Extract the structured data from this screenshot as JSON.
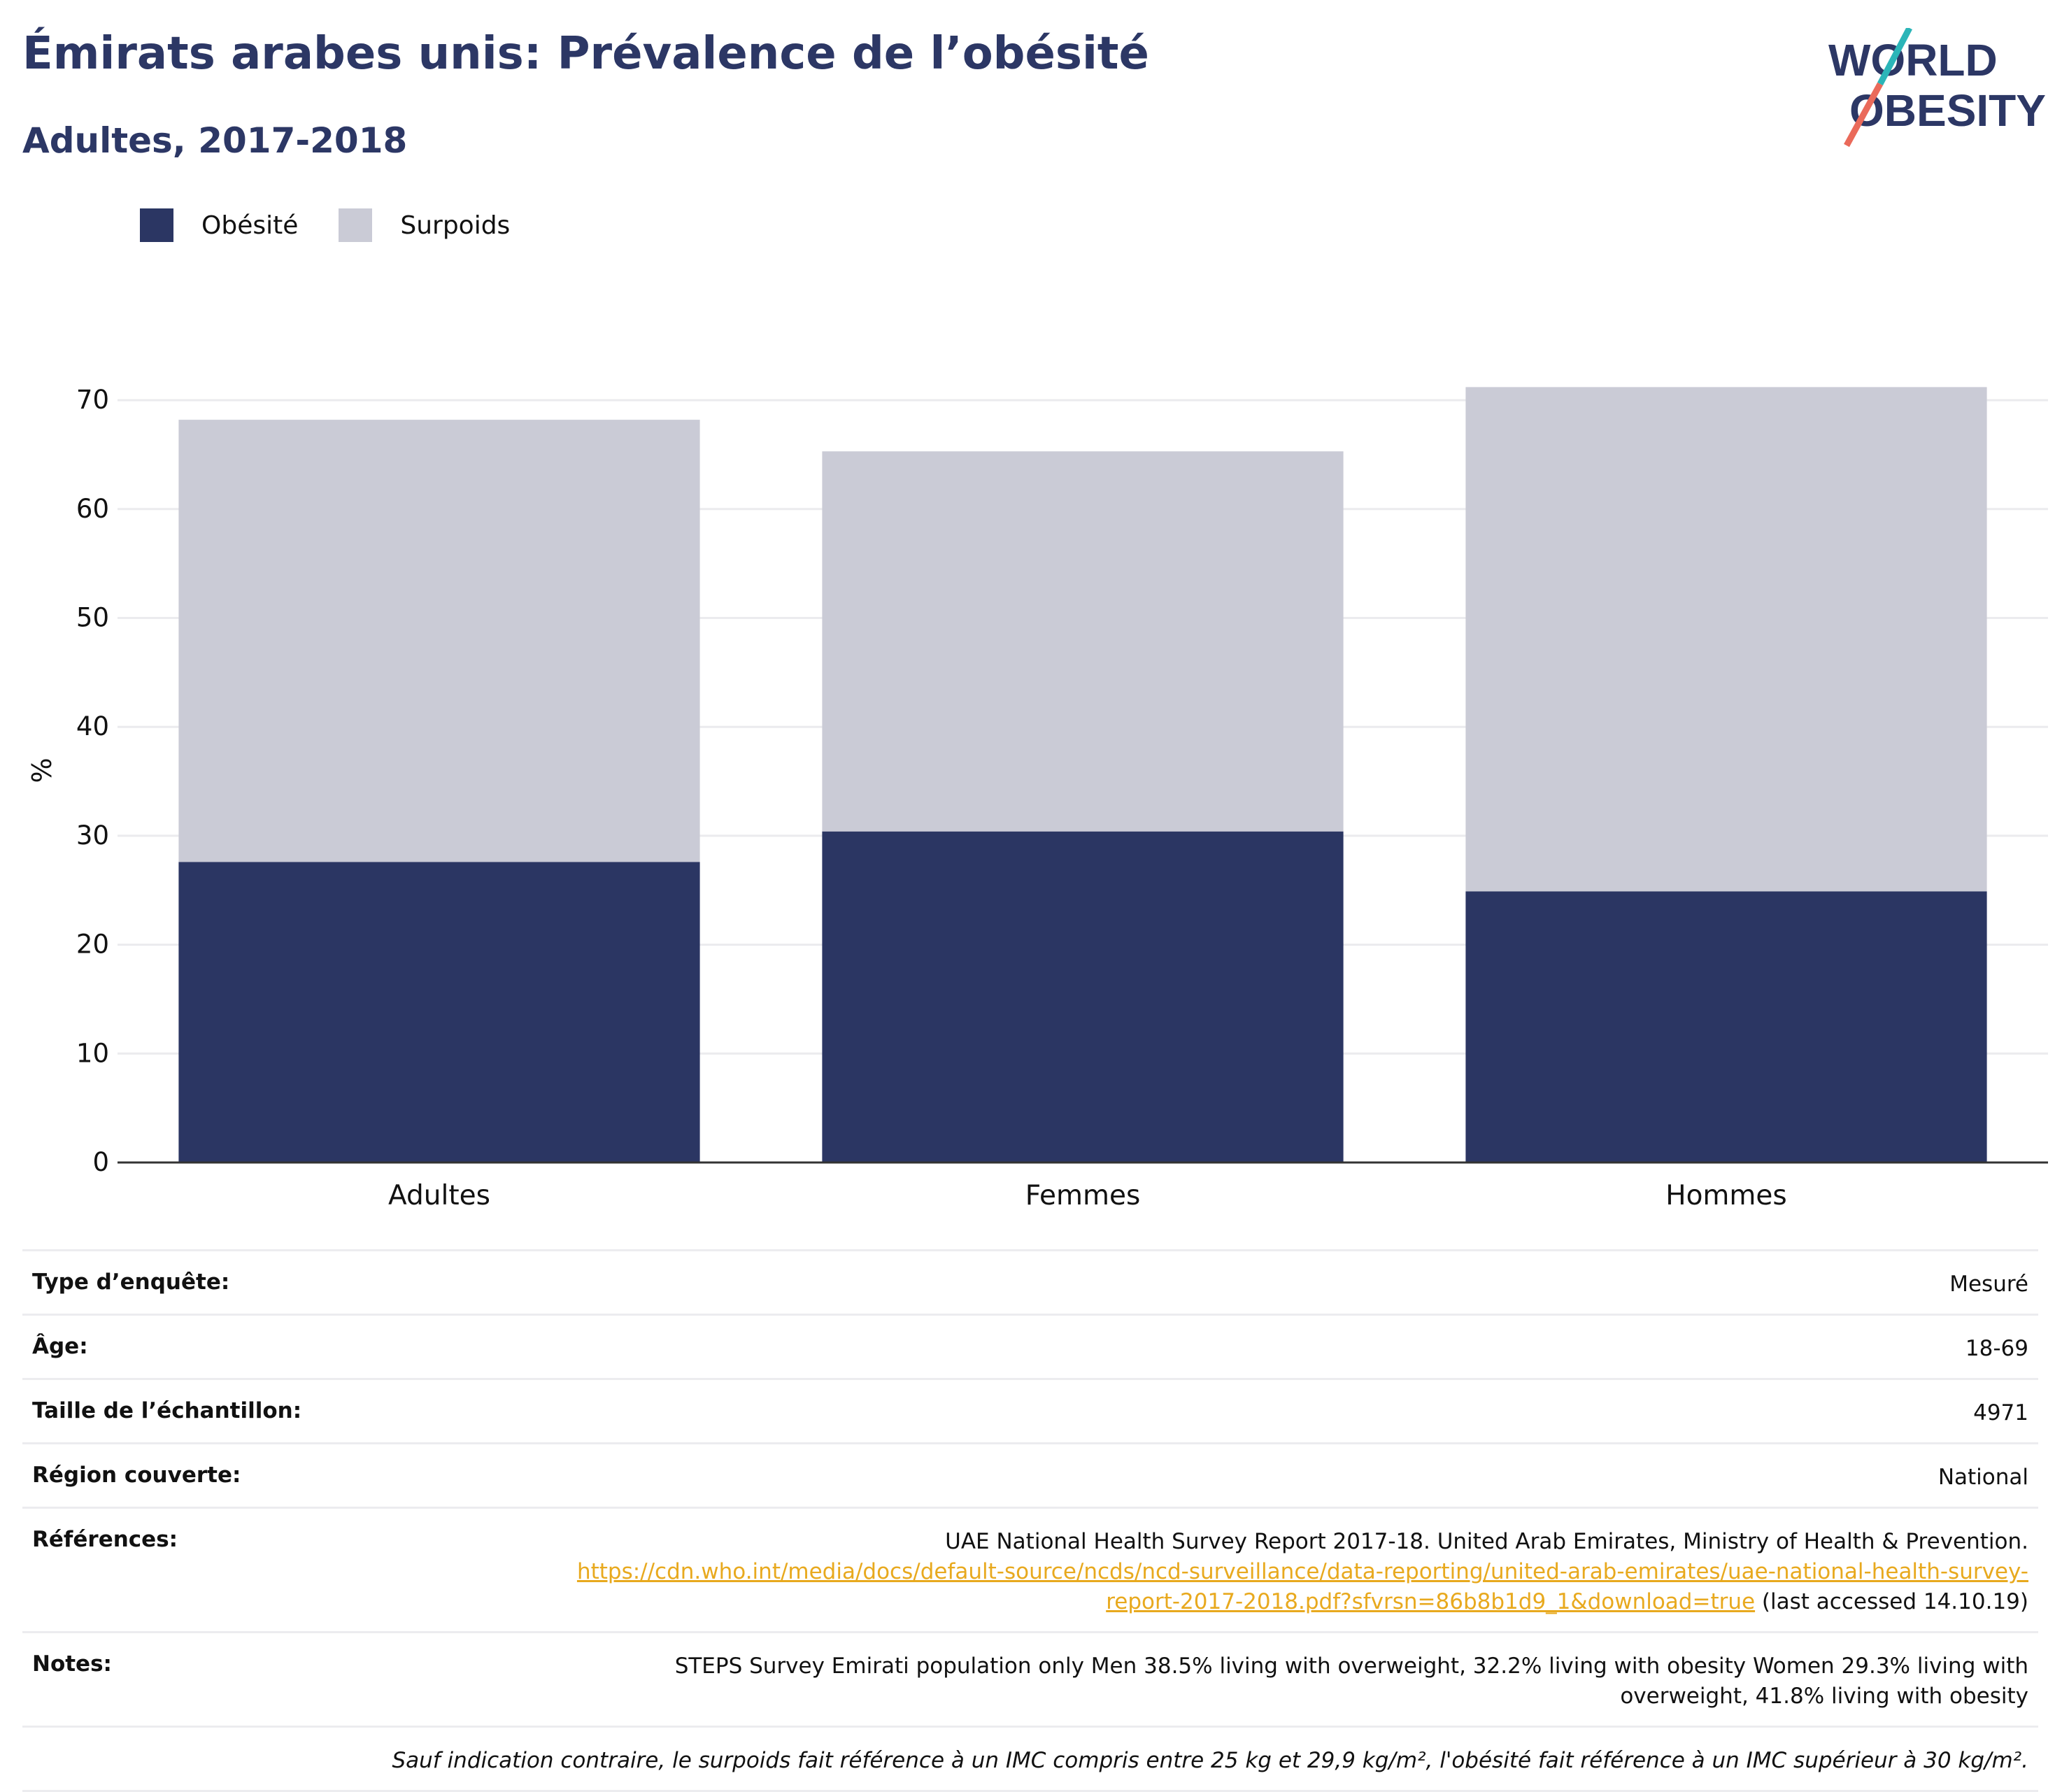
{
  "title": "Émirats arabes unis: Prévalence de l’obésité",
  "subtitle": "Adultes, 2017-2018",
  "logo": {
    "line1": "WORLD",
    "line2": "OBESITY"
  },
  "legend": [
    {
      "label": "Obésité",
      "color": "#2b3663"
    },
    {
      "label": "Surpoids",
      "color": "#cacbd6"
    }
  ],
  "chart_data": {
    "type": "bar",
    "stacked": true,
    "categories": [
      "Adultes",
      "Femmes",
      "Hommes"
    ],
    "series": [
      {
        "name": "Obésité",
        "color": "#2b3663",
        "values": [
          27.6,
          30.4,
          24.9
        ]
      },
      {
        "name": "Surpoids",
        "color": "#cacbd6",
        "values": [
          40.6,
          34.9,
          46.3
        ]
      }
    ],
    "ylabel": "%",
    "ylim": [
      0,
      72
    ],
    "yticks": [
      0,
      10,
      20,
      30,
      40,
      50,
      60,
      70
    ],
    "grid": true,
    "legend_position": "top-left"
  },
  "info": {
    "survey_type": {
      "label": "Type d’enquête:",
      "value": "Mesuré"
    },
    "age": {
      "label": "Âge:",
      "value": "18-69"
    },
    "sample_size": {
      "label": "Taille de l’échantillon:",
      "value": "4971"
    },
    "region": {
      "label": "Région couverte:",
      "value": "National"
    },
    "references": {
      "label": "Références:",
      "text": "UAE National Health Survey Report 2017-18. United Arab Emirates, Ministry of Health & Prevention.",
      "link_part1": "https://cdn.who.int/media/docs/default-source/ncds/ncd-surveillance/data-reporting/united-arab-emirates/uae-national-health-survey-",
      "link_part2": "report-2017-2018.pdf?sfvrsn=86b8b1d9_1&download=true",
      "suffix": " (last accessed 14.10.19)"
    },
    "notes": {
      "label": "Notes:",
      "line1": "STEPS Survey Emirati population only Men 38.5% living with overweight, 32.2% living with obesity Women 29.3% living with",
      "line2": "overweight, 41.8% living with obesity"
    },
    "footnote": "Sauf indication contraire, le surpoids fait référence à un IMC compris entre 25 kg et 29,9 kg/m², l'obésité fait référence à un IMC supérieur à 30 kg/m²."
  }
}
